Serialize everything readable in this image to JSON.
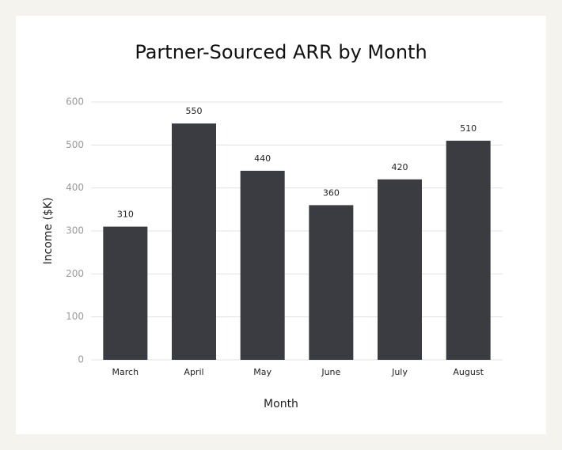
{
  "chart_data": {
    "type": "bar",
    "title": "Partner-Sourced ARR by Month",
    "x_label": "Month",
    "y_label": "Income ($K)",
    "categories": [
      "March",
      "April",
      "May",
      "June",
      "July",
      "August"
    ],
    "values": [
      310,
      550,
      440,
      360,
      420,
      510
    ],
    "color": "#3a3c42",
    "ylim": [
      0,
      600
    ],
    "yticks": [
      0,
      100,
      200,
      300,
      400,
      500,
      600
    ],
    "grid": true
  }
}
